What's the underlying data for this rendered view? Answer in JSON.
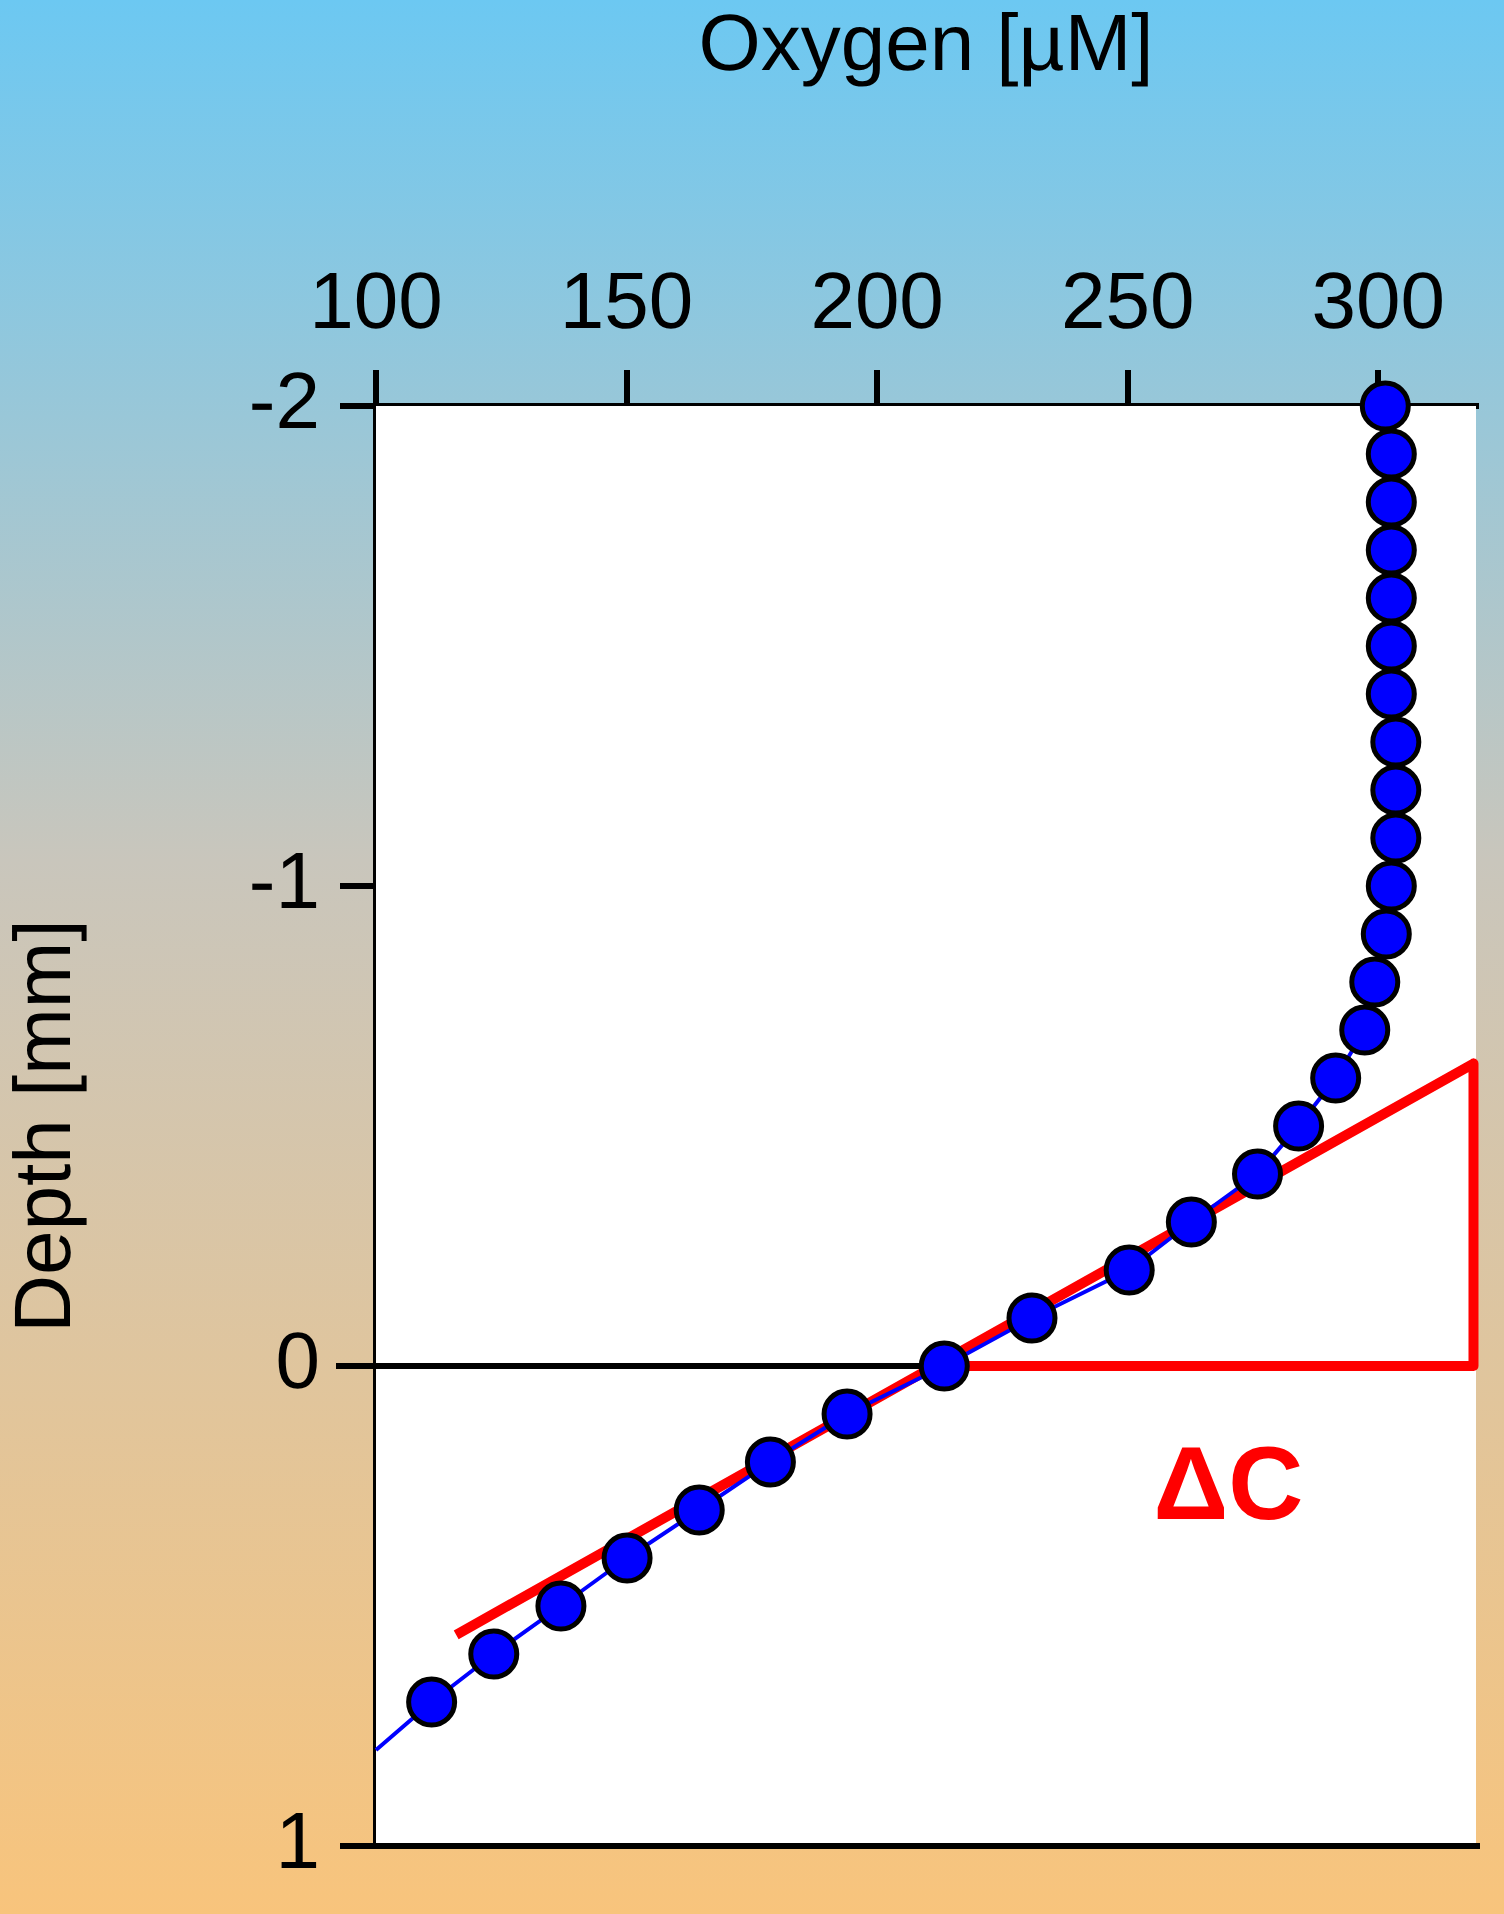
{
  "chart_data": {
    "type": "scatter",
    "xlabel": "Oxygen [µM]",
    "ylabel": "Depth [mm]",
    "xlim": [
      100,
      319.5
    ],
    "xticks": [
      100,
      150,
      200,
      250,
      300
    ],
    "ylim": [
      1,
      -2
    ],
    "yticks": [
      -2,
      -1,
      0,
      1
    ],
    "series": [
      {
        "type": "line",
        "color": "#0000ff",
        "marker": "none",
        "x": [
          301.4,
          302.6,
          302.6,
          302.6,
          302.6,
          302.6,
          302.6,
          303.5,
          303.5,
          303.5,
          302.6,
          301.6,
          299.3,
          297.3,
          291.5,
          284.1,
          275.9,
          262.7,
          250.3,
          230.9,
          213.4,
          194,
          178.7,
          164.5,
          150.1,
          136.9,
          123.5,
          111.1,
          100
        ],
        "values": [
          -2,
          -1.9,
          -1.8,
          -1.7,
          -1.6,
          -1.5,
          -1.4,
          -1.3,
          -1.2,
          -1.1,
          -1,
          -0.9,
          -0.8,
          -0.7,
          -0.6,
          -0.5,
          -0.4,
          -0.3,
          -0.2,
          -0.1,
          0,
          0.1,
          0.2,
          0.3,
          0.4,
          0.5,
          0.6,
          0.7,
          0.8
        ]
      },
      {
        "type": "line",
        "color": "#ff0000",
        "marker": "none",
        "x": [
          116,
          319,
          319,
          214.5
        ],
        "values": [
          0.56,
          -0.63,
          0,
          0
        ]
      },
      {
        "color": "#0000ff",
        "marker": "circle",
        "x": [
          301.4,
          302.6,
          302.6,
          302.6,
          302.6,
          302.6,
          302.6,
          303.5,
          303.5,
          303.5,
          302.6,
          301.6,
          299.3,
          297.3,
          291.5,
          284.1,
          275.9,
          262.7,
          250.3,
          230.9,
          213.4,
          194,
          178.7,
          164.5,
          150.1,
          136.9,
          123.5,
          111.1
        ],
        "values": [
          -2,
          -1.9,
          -1.8,
          -1.7,
          -1.6,
          -1.5,
          -1.4,
          -1.3,
          -1.2,
          -1.1,
          -1,
          -0.9,
          -0.8,
          -0.7,
          -0.6,
          -0.5,
          -0.4,
          -0.3,
          -0.2,
          -0.1,
          0,
          0.1,
          0.2,
          0.3,
          0.4,
          0.5,
          0.6,
          0.7
        ]
      }
    ],
    "ref_lines": [
      {
        "axis": "y",
        "value": 0,
        "color": "#000000"
      }
    ],
    "annotations": [
      "ΔC"
    ]
  }
}
